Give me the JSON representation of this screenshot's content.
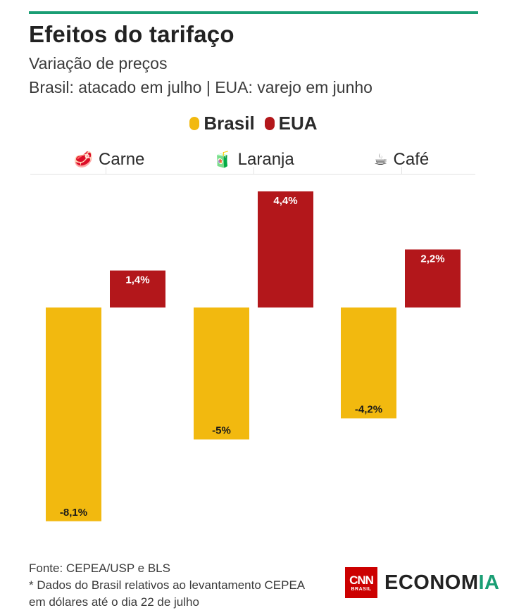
{
  "header": {
    "title": "Efeitos do tarifaço",
    "subtitle": "Variação de preços",
    "subtitle2": "Brasil: atacado em julho | EUA: varejo em junho"
  },
  "colors": {
    "accent": "#1a9e74",
    "brasil": "#f2b90f",
    "eua": "#b3171b",
    "logo_red": "#cc0000"
  },
  "legend": [
    {
      "label": "Brasil",
      "color": "#f2b90f"
    },
    {
      "label": "EUA",
      "color": "#b3171b"
    }
  ],
  "categories": [
    {
      "label": "Carne",
      "icon": "meat-icon",
      "glyph": "🥩"
    },
    {
      "label": "Laranja",
      "icon": "juice-box-icon",
      "glyph": "🧃"
    },
    {
      "label": "Café",
      "icon": "coffee-icon",
      "glyph": "☕"
    }
  ],
  "chart_data": {
    "type": "bar",
    "title": "Efeitos do tarifaço",
    "subtitle": "Variação de preços",
    "categories": [
      "Carne",
      "Laranja",
      "Café"
    ],
    "series": [
      {
        "name": "Brasil",
        "values": [
          -8.1,
          -5,
          -4.2
        ],
        "labels": [
          "-8,1%",
          "-5%",
          "-4,2%"
        ],
        "color": "#f2b90f"
      },
      {
        "name": "EUA",
        "values": [
          1.4,
          4.4,
          2.2
        ],
        "labels": [
          "1,4%",
          "4,4%",
          "2,2%"
        ],
        "color": "#b3171b"
      }
    ],
    "ylim": [
      -8.1,
      4.4
    ],
    "grid": false,
    "legend_position": "top-center"
  },
  "footer": {
    "source": "Fonte: CEPEA/USP e BLS",
    "note_line1": "* Dados do Brasil relativos ao levantamento CEPEA",
    "note_line2": "em dólares até o dia 22 de julho",
    "logo_cnn": "CNN",
    "logo_brasil": "BRASIL",
    "logo_economia_main": "ECONOM",
    "logo_economia_accent": "IA"
  }
}
